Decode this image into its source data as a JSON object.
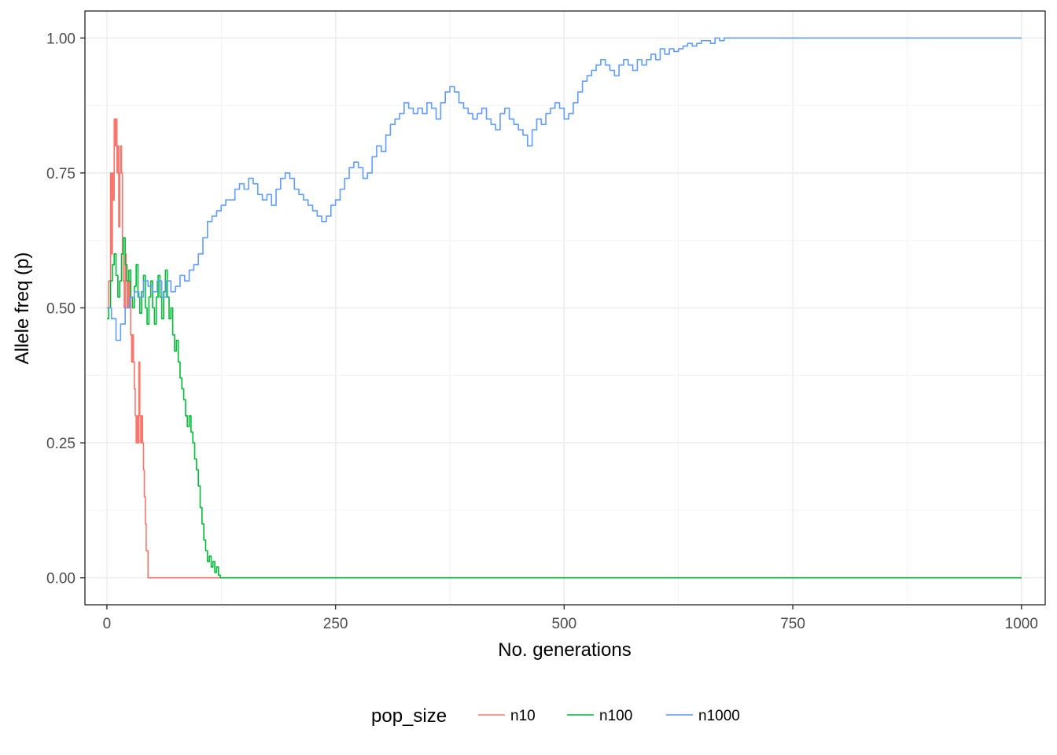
{
  "chart_data": {
    "type": "line",
    "xlabel": "No. generations",
    "ylabel": "Allele freq (p)",
    "xlim": [
      -24,
      1026
    ],
    "ylim": [
      -0.05,
      1.05
    ],
    "x_ticks": [
      0,
      250,
      500,
      750,
      1000
    ],
    "x_tick_labels": [
      "0",
      "250",
      "500",
      "750",
      "1000"
    ],
    "y_ticks": [
      0,
      0.25,
      0.5,
      0.75,
      1.0
    ],
    "y_tick_labels": [
      "0.00",
      "0.25",
      "0.50",
      "0.75",
      "1.00"
    ],
    "grid": true,
    "legend": {
      "title": "pop_size",
      "position": "bottom"
    },
    "series": [
      {
        "name": "n10",
        "color": "#F8766D",
        "x": [
          0,
          2,
          4,
          5,
          6,
          7,
          8,
          9,
          10,
          11,
          12,
          13,
          14,
          15,
          16,
          17,
          18,
          19,
          20,
          21,
          22,
          23,
          24,
          25,
          26,
          27,
          28,
          29,
          30,
          31,
          32,
          33,
          34,
          35,
          36,
          37,
          38,
          39,
          40,
          41,
          42,
          43,
          44,
          45,
          46,
          47,
          48,
          1000
        ],
        "y": [
          0.5,
          0.55,
          0.75,
          0.6,
          0.75,
          0.7,
          0.85,
          0.8,
          0.85,
          0.75,
          0.8,
          0.65,
          0.75,
          0.8,
          0.75,
          0.6,
          0.55,
          0.5,
          0.6,
          0.55,
          0.5,
          0.55,
          0.5,
          0.55,
          0.45,
          0.4,
          0.45,
          0.4,
          0.35,
          0.3,
          0.25,
          0.3,
          0.25,
          0.4,
          0.3,
          0.25,
          0.3,
          0.25,
          0.2,
          0.15,
          0.1,
          0.05,
          0.05,
          0,
          0,
          0,
          0,
          0
        ]
      },
      {
        "name": "n100",
        "color": "#00BA38",
        "x": [
          0,
          2,
          4,
          6,
          8,
          10,
          12,
          14,
          16,
          18,
          20,
          22,
          24,
          26,
          28,
          30,
          32,
          34,
          36,
          38,
          40,
          42,
          44,
          46,
          48,
          50,
          52,
          54,
          56,
          58,
          60,
          62,
          64,
          66,
          68,
          70,
          72,
          74,
          76,
          78,
          80,
          82,
          84,
          86,
          88,
          90,
          92,
          94,
          96,
          98,
          100,
          102,
          104,
          106,
          108,
          110,
          112,
          114,
          116,
          118,
          120,
          122,
          124,
          1000
        ],
        "y": [
          0.48,
          0.5,
          0.55,
          0.58,
          0.6,
          0.56,
          0.52,
          0.55,
          0.6,
          0.63,
          0.58,
          0.55,
          0.57,
          0.52,
          0.5,
          0.54,
          0.58,
          0.52,
          0.49,
          0.53,
          0.56,
          0.5,
          0.47,
          0.52,
          0.55,
          0.5,
          0.47,
          0.52,
          0.56,
          0.52,
          0.48,
          0.53,
          0.57,
          0.52,
          0.48,
          0.5,
          0.45,
          0.42,
          0.44,
          0.4,
          0.37,
          0.35,
          0.33,
          0.3,
          0.28,
          0.3,
          0.27,
          0.25,
          0.22,
          0.2,
          0.17,
          0.13,
          0.1,
          0.07,
          0.05,
          0.03,
          0.04,
          0.02,
          0.03,
          0.01,
          0.02,
          0.005,
          0,
          0
        ]
      },
      {
        "name": "n1000",
        "color": "#619CFF",
        "x": [
          0,
          5,
          10,
          15,
          20,
          25,
          30,
          35,
          40,
          45,
          50,
          55,
          60,
          65,
          70,
          75,
          80,
          85,
          90,
          95,
          100,
          105,
          110,
          115,
          120,
          125,
          130,
          135,
          140,
          145,
          150,
          155,
          160,
          165,
          170,
          175,
          180,
          185,
          190,
          195,
          200,
          205,
          210,
          215,
          220,
          225,
          230,
          235,
          240,
          245,
          250,
          255,
          260,
          265,
          270,
          275,
          280,
          285,
          290,
          295,
          300,
          305,
          310,
          315,
          320,
          325,
          330,
          335,
          340,
          345,
          350,
          355,
          360,
          365,
          370,
          375,
          380,
          385,
          390,
          395,
          400,
          405,
          410,
          415,
          420,
          425,
          430,
          435,
          440,
          445,
          450,
          455,
          460,
          465,
          470,
          475,
          480,
          485,
          490,
          495,
          500,
          505,
          510,
          515,
          520,
          525,
          530,
          535,
          540,
          545,
          550,
          555,
          560,
          565,
          570,
          575,
          580,
          585,
          590,
          595,
          600,
          605,
          610,
          615,
          620,
          625,
          630,
          635,
          640,
          645,
          650,
          655,
          660,
          665,
          670,
          675,
          680,
          685,
          1000
        ],
        "y": [
          0.5,
          0.48,
          0.44,
          0.47,
          0.5,
          0.52,
          0.53,
          0.52,
          0.55,
          0.54,
          0.53,
          0.55,
          0.52,
          0.55,
          0.53,
          0.54,
          0.56,
          0.55,
          0.57,
          0.58,
          0.6,
          0.63,
          0.66,
          0.67,
          0.68,
          0.69,
          0.7,
          0.7,
          0.72,
          0.73,
          0.72,
          0.74,
          0.73,
          0.71,
          0.7,
          0.71,
          0.69,
          0.72,
          0.74,
          0.75,
          0.74,
          0.72,
          0.71,
          0.7,
          0.69,
          0.68,
          0.67,
          0.66,
          0.67,
          0.69,
          0.7,
          0.72,
          0.74,
          0.76,
          0.77,
          0.76,
          0.74,
          0.75,
          0.78,
          0.8,
          0.79,
          0.82,
          0.84,
          0.85,
          0.86,
          0.88,
          0.87,
          0.86,
          0.87,
          0.86,
          0.88,
          0.87,
          0.85,
          0.88,
          0.9,
          0.91,
          0.9,
          0.88,
          0.87,
          0.86,
          0.85,
          0.86,
          0.87,
          0.85,
          0.84,
          0.83,
          0.86,
          0.87,
          0.85,
          0.84,
          0.83,
          0.82,
          0.8,
          0.83,
          0.85,
          0.84,
          0.86,
          0.87,
          0.88,
          0.87,
          0.85,
          0.86,
          0.88,
          0.9,
          0.92,
          0.93,
          0.94,
          0.95,
          0.96,
          0.95,
          0.94,
          0.93,
          0.95,
          0.96,
          0.95,
          0.94,
          0.96,
          0.95,
          0.96,
          0.97,
          0.96,
          0.98,
          0.97,
          0.98,
          0.975,
          0.98,
          0.985,
          0.99,
          0.985,
          0.99,
          0.995,
          0.995,
          0.99,
          1.0,
          0.995,
          1.0,
          1.0,
          1.0,
          1.0
        ]
      }
    ]
  }
}
